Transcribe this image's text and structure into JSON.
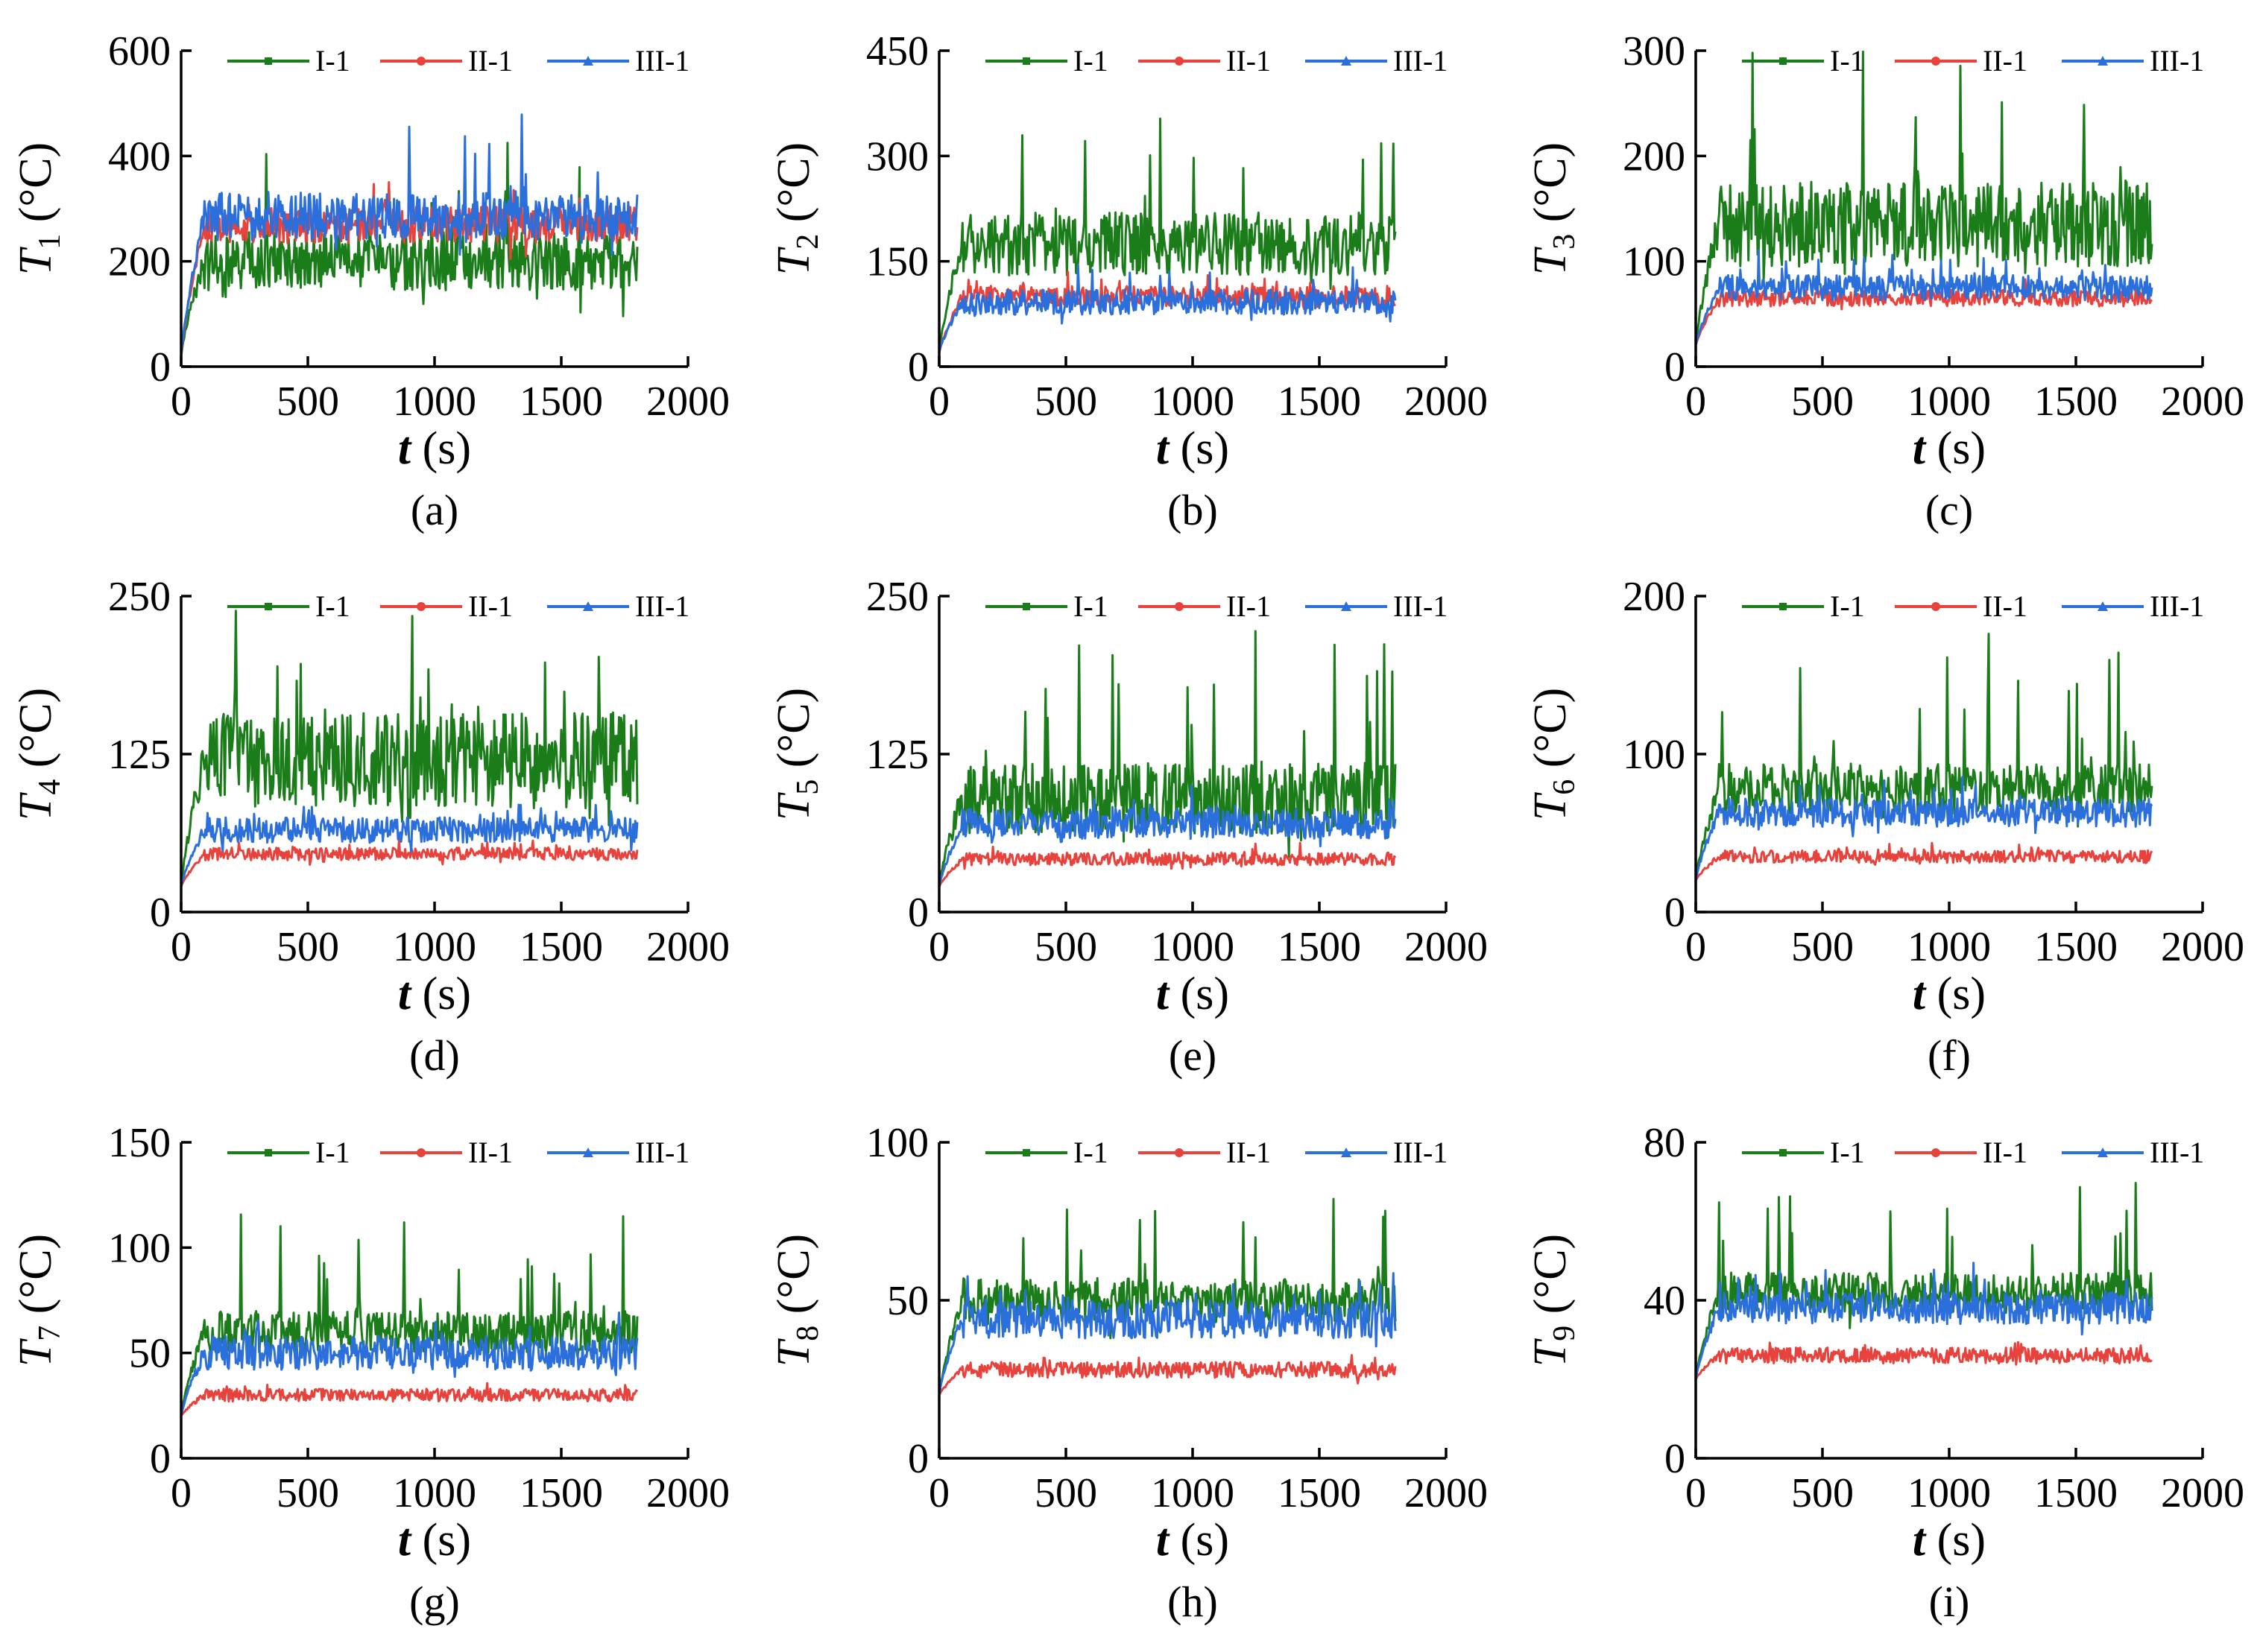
{
  "colors": {
    "I-1": "#1a7d1a",
    "II-1": "#e8423c",
    "III-1": "#2a6fdc"
  },
  "chart_data": [
    {
      "type": "line",
      "panel": "(a)",
      "ylabel_main": "T",
      "ylabel_sub": "1",
      "ylabel_unit": " (°C)",
      "xlabel_main": "t",
      "xlabel_unit": " (s)",
      "xlim": [
        0,
        2000
      ],
      "ylim": [
        0,
        600
      ],
      "xticks": [
        0,
        500,
        1000,
        1500,
        2000
      ],
      "yticks": [
        0,
        200,
        400,
        600
      ],
      "legend": "top",
      "series": [
        {
          "name": "I-1",
          "start": 20,
          "rise_end": 90,
          "base": 200,
          "noise": 55,
          "spike": 210,
          "marker": "square"
        },
        {
          "name": "II-1",
          "start": 20,
          "rise_end": 90,
          "base": 270,
          "noise": 35,
          "spike": 60,
          "marker": "circle"
        },
        {
          "name": "III-1",
          "start": 20,
          "rise_end": 90,
          "base": 285,
          "noise": 45,
          "spike": 170,
          "marker": "triangle"
        }
      ]
    },
    {
      "type": "line",
      "panel": "(b)",
      "ylabel_main": "T",
      "ylabel_sub": "2",
      "ylabel_unit": " (°C)",
      "xlabel_main": "t",
      "xlabel_unit": " (s)",
      "xlim": [
        0,
        2000
      ],
      "ylim": [
        0,
        450
      ],
      "xticks": [
        0,
        500,
        1000,
        1500,
        2000
      ],
      "yticks": [
        0,
        150,
        300,
        450
      ],
      "legend": "top",
      "series": [
        {
          "name": "I-1",
          "start": 20,
          "rise_end": 90,
          "base": 175,
          "noise": 45,
          "spike": 180,
          "marker": "square"
        },
        {
          "name": "II-1",
          "start": 20,
          "rise_end": 90,
          "base": 100,
          "noise": 15,
          "spike": 30,
          "marker": "circle"
        },
        {
          "name": "III-1",
          "start": 20,
          "rise_end": 90,
          "base": 92,
          "noise": 18,
          "spike": 40,
          "marker": "triangle"
        }
      ]
    },
    {
      "type": "line",
      "panel": "(c)",
      "ylabel_main": "T",
      "ylabel_sub": "3",
      "ylabel_unit": " (°C)",
      "xlabel_main": "t",
      "xlabel_unit": " (s)",
      "xlim": [
        0,
        2000
      ],
      "ylim": [
        0,
        300
      ],
      "xticks": [
        0,
        500,
        1000,
        1500,
        2000
      ],
      "yticks": [
        0,
        100,
        200,
        300
      ],
      "legend": "top",
      "series": [
        {
          "name": "I-1",
          "start": 20,
          "rise_end": 90,
          "base": 135,
          "noise": 40,
          "spike": 140,
          "marker": "square"
        },
        {
          "name": "II-1",
          "start": 20,
          "rise_end": 90,
          "base": 65,
          "noise": 8,
          "spike": 15,
          "marker": "circle"
        },
        {
          "name": "III-1",
          "start": 20,
          "rise_end": 90,
          "base": 75,
          "noise": 12,
          "spike": 30,
          "marker": "triangle"
        }
      ]
    },
    {
      "type": "line",
      "panel": "(d)",
      "ylabel_main": "T",
      "ylabel_sub": "4",
      "ylabel_unit": " (°C)",
      "xlabel_main": "t",
      "xlabel_unit": " (s)",
      "xlim": [
        0,
        2000
      ],
      "ylim": [
        0,
        250
      ],
      "xticks": [
        0,
        500,
        1000,
        1500,
        2000
      ],
      "yticks": [
        0,
        125,
        250
      ],
      "legend": "top",
      "series": [
        {
          "name": "I-1",
          "start": 20,
          "rise_end": 90,
          "base": 120,
          "noise": 38,
          "spike": 105,
          "marker": "square"
        },
        {
          "name": "II-1",
          "start": 20,
          "rise_end": 90,
          "base": 46,
          "noise": 5,
          "spike": 8,
          "marker": "circle"
        },
        {
          "name": "III-1",
          "start": 20,
          "rise_end": 90,
          "base": 65,
          "noise": 10,
          "spike": 20,
          "marker": "triangle"
        }
      ]
    },
    {
      "type": "line",
      "panel": "(e)",
      "ylabel_main": "T",
      "ylabel_sub": "5",
      "ylabel_unit": " (°C)",
      "xlabel_main": "t",
      "xlabel_unit": " (s)",
      "xlim": [
        0,
        2000
      ],
      "ylim": [
        0,
        250
      ],
      "xticks": [
        0,
        500,
        1000,
        1500,
        2000
      ],
      "yticks": [
        0,
        125,
        250
      ],
      "legend": "top",
      "series": [
        {
          "name": "I-1",
          "start": 20,
          "rise_end": 90,
          "base": 90,
          "noise": 28,
          "spike": 130,
          "marker": "square"
        },
        {
          "name": "II-1",
          "start": 20,
          "rise_end": 90,
          "base": 42,
          "noise": 5,
          "spike": 8,
          "marker": "circle"
        },
        {
          "name": "III-1",
          "start": 20,
          "rise_end": 90,
          "base": 70,
          "noise": 12,
          "spike": 25,
          "marker": "triangle"
        }
      ]
    },
    {
      "type": "line",
      "panel": "(f)",
      "ylabel_main": "T",
      "ylabel_sub": "6",
      "ylabel_unit": " (°C)",
      "xlabel_main": "t",
      "xlabel_unit": " (s)",
      "xlim": [
        0,
        2000
      ],
      "ylim": [
        0,
        200
      ],
      "xticks": [
        0,
        500,
        1000,
        1500,
        2000
      ],
      "yticks": [
        0,
        100,
        200
      ],
      "legend": "top",
      "series": [
        {
          "name": "I-1",
          "start": 20,
          "rise_end": 90,
          "base": 78,
          "noise": 16,
          "spike": 90,
          "marker": "square"
        },
        {
          "name": "II-1",
          "start": 20,
          "rise_end": 90,
          "base": 35,
          "noise": 4,
          "spike": 6,
          "marker": "circle"
        },
        {
          "name": "III-1",
          "start": 20,
          "rise_end": 90,
          "base": 63,
          "noise": 9,
          "spike": 20,
          "marker": "triangle"
        }
      ]
    },
    {
      "type": "line",
      "panel": "(g)",
      "ylabel_main": "T",
      "ylabel_sub": "7",
      "ylabel_unit": " (°C)",
      "xlabel_main": "t",
      "xlabel_unit": " (s)",
      "xlim": [
        0,
        2000
      ],
      "ylim": [
        0,
        150
      ],
      "xticks": [
        0,
        500,
        1000,
        1500,
        2000
      ],
      "yticks": [
        0,
        50,
        100,
        150
      ],
      "legend": "top",
      "series": [
        {
          "name": "I-1",
          "start": 20,
          "rise_end": 90,
          "base": 60,
          "noise": 10,
          "spike": 52,
          "marker": "square"
        },
        {
          "name": "II-1",
          "start": 20,
          "rise_end": 90,
          "base": 30,
          "noise": 3,
          "spike": 5,
          "marker": "circle"
        },
        {
          "name": "III-1",
          "start": 20,
          "rise_end": 90,
          "base": 50,
          "noise": 8,
          "spike": 18,
          "marker": "triangle"
        }
      ]
    },
    {
      "type": "line",
      "panel": "(h)",
      "ylabel_main": "T",
      "ylabel_sub": "8",
      "ylabel_unit": " (°C)",
      "xlabel_main": "t",
      "xlabel_unit": " (s)",
      "xlim": [
        0,
        2000
      ],
      "ylim": [
        0,
        100
      ],
      "xticks": [
        0,
        500,
        1000,
        1500,
        2000
      ],
      "yticks": [
        0,
        50,
        100
      ],
      "legend": "top",
      "series": [
        {
          "name": "I-1",
          "start": 20,
          "rise_end": 90,
          "base": 50,
          "noise": 7,
          "spike": 32,
          "marker": "square"
        },
        {
          "name": "II-1",
          "start": 20,
          "rise_end": 90,
          "base": 28,
          "noise": 2.5,
          "spike": 4,
          "marker": "circle"
        },
        {
          "name": "III-1",
          "start": 20,
          "rise_end": 90,
          "base": 44,
          "noise": 6,
          "spike": 12,
          "marker": "triangle"
        }
      ]
    },
    {
      "type": "line",
      "panel": "(i)",
      "ylabel_main": "T",
      "ylabel_sub": "9",
      "ylabel_unit": " (°C)",
      "xlabel_main": "t",
      "xlabel_unit": " (s)",
      "xlim": [
        0,
        2000
      ],
      "ylim": [
        0,
        80
      ],
      "xticks": [
        0,
        500,
        1000,
        1500,
        2000
      ],
      "yticks": [
        0,
        40,
        80
      ],
      "legend": "top",
      "series": [
        {
          "name": "I-1",
          "start": 20,
          "rise_end": 90,
          "base": 42,
          "noise": 5,
          "spike": 28,
          "marker": "square"
        },
        {
          "name": "II-1",
          "start": 20,
          "rise_end": 90,
          "base": 26,
          "noise": 2,
          "spike": 3,
          "marker": "circle"
        },
        {
          "name": "III-1",
          "start": 20,
          "rise_end": 90,
          "base": 38,
          "noise": 4,
          "spike": 8,
          "marker": "triangle"
        }
      ]
    }
  ]
}
